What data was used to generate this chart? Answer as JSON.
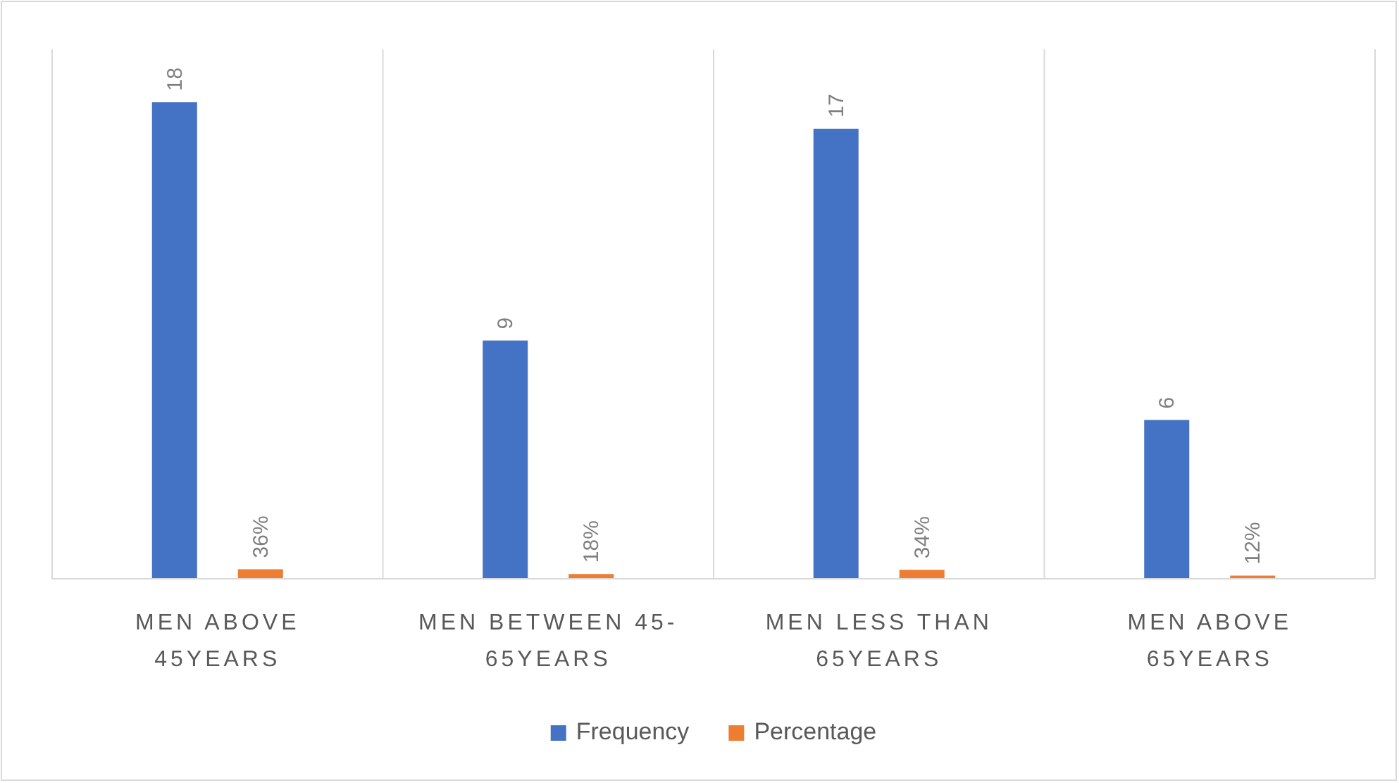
{
  "chart_data": {
    "type": "bar",
    "categories": [
      "MEN ABOVE 45YEARS",
      "MEN BETWEEN 45-65YEARS",
      "MEN LESS THAN 65YEARS",
      "MEN ABOVE 65YEARS"
    ],
    "series": [
      {
        "name": "Frequency",
        "color": "#4472c4",
        "values": [
          18,
          9,
          17,
          6
        ],
        "value_labels": [
          "18",
          "9",
          "17",
          "6"
        ]
      },
      {
        "name": "Percentage",
        "color": "#ed7d31",
        "values": [
          0.36,
          0.18,
          0.34,
          0.12
        ],
        "value_labels": [
          "36%",
          "18%",
          "34%",
          "12%"
        ]
      }
    ],
    "ylim": [
      0,
      20
    ],
    "legend": "bottom"
  }
}
